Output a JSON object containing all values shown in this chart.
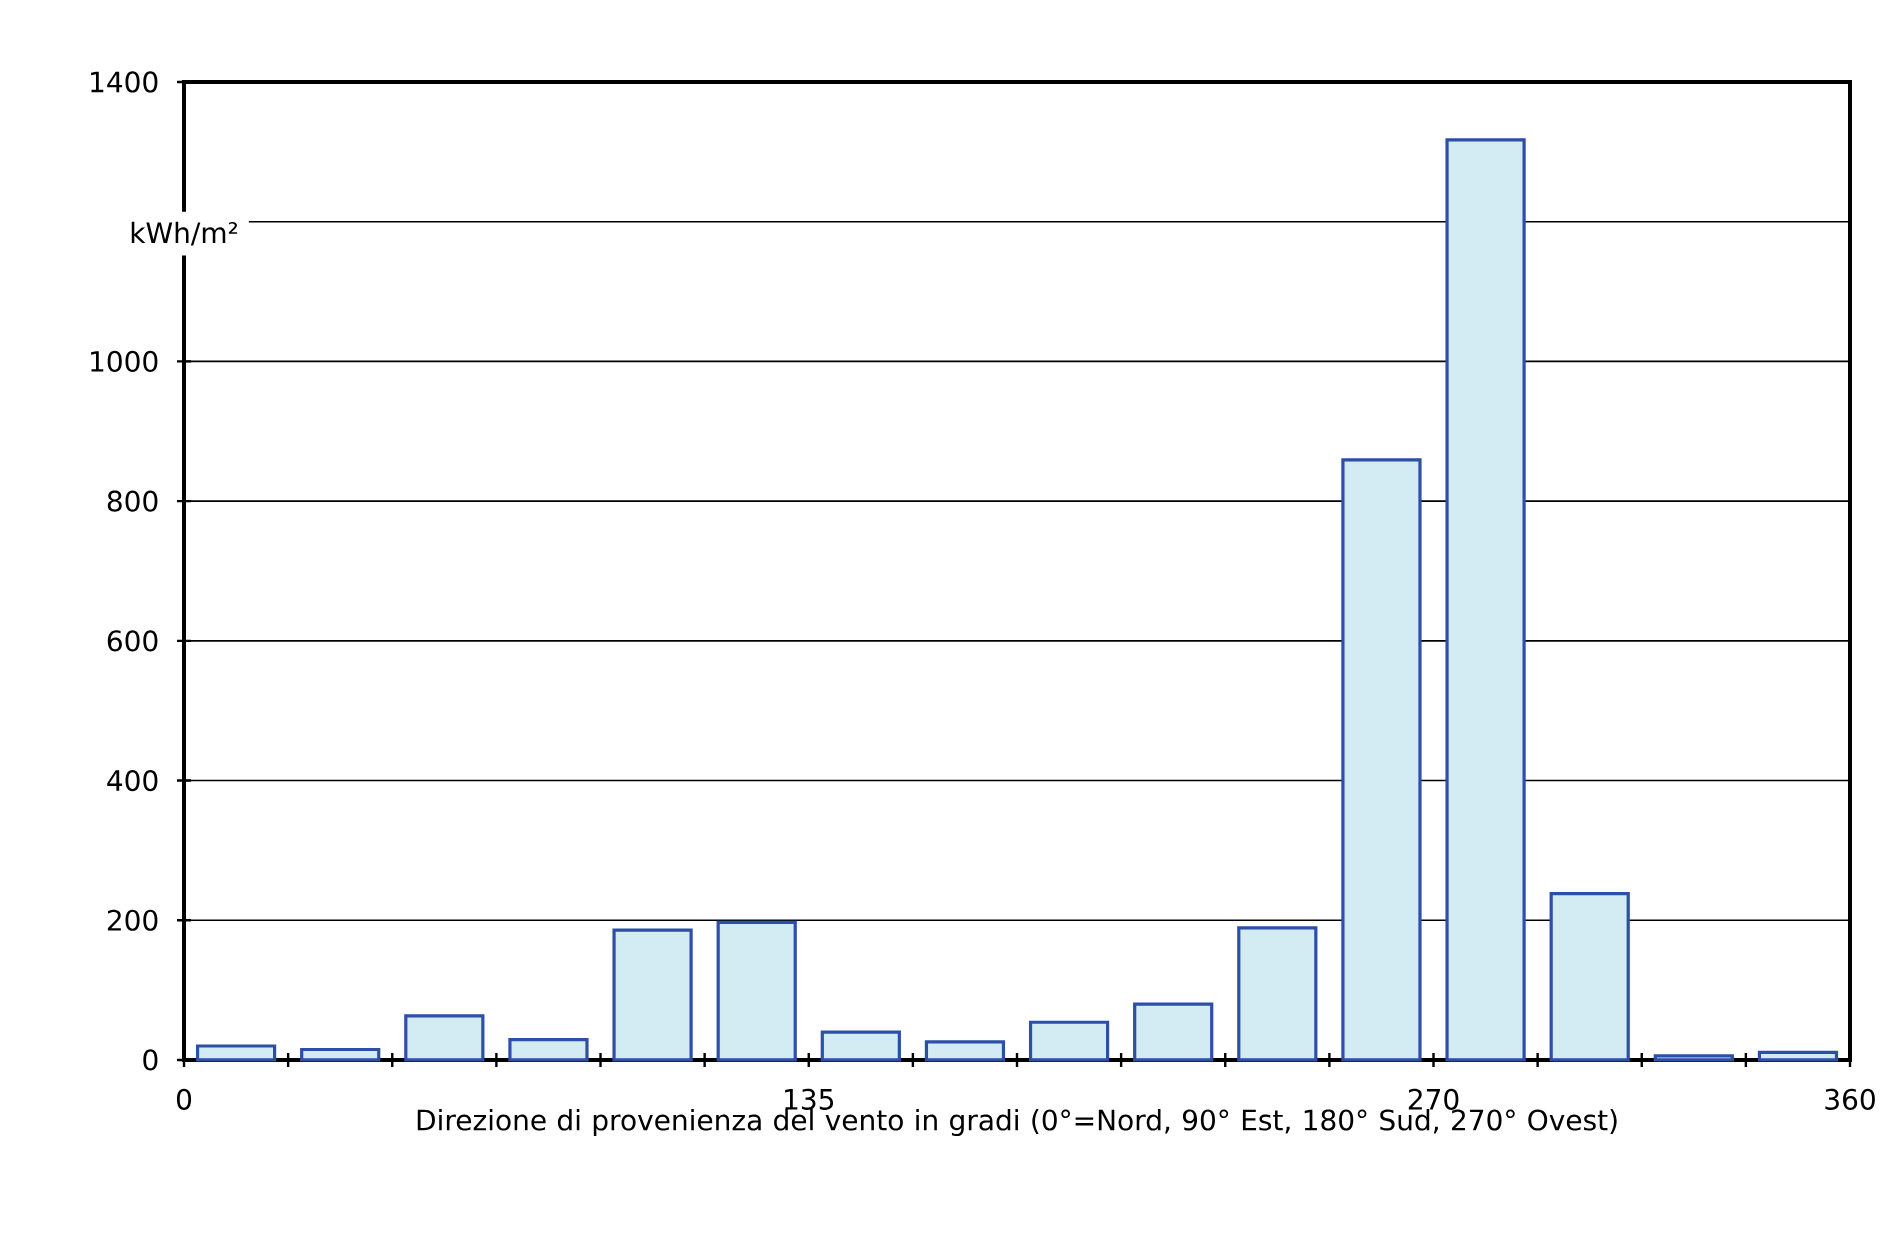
{
  "chart_data": {
    "type": "histogram",
    "xlabel": "Direzione di provenienza del vento in gradi (0°=Nord, 90° Est, 180° Sud, 270° Ovest)",
    "ylabel": "kWh/m²",
    "bins": [
      0,
      22.5,
      45,
      67.5,
      90,
      112.5,
      135,
      157.5,
      180,
      202.5,
      225,
      247.5,
      270,
      292.5,
      315,
      337.5,
      360
    ],
    "values": [
      20,
      15,
      63,
      29,
      186,
      197,
      40,
      26,
      54,
      80,
      189,
      859,
      1317,
      238,
      6,
      11
    ],
    "color": "#d3ebf2",
    "xlim": [
      0,
      360
    ],
    "xticks": [
      0,
      {
        "value": 22.5,
        "label": null
      },
      {
        "value": 45,
        "label": null
      },
      {
        "value": 67.5,
        "label": null
      },
      {
        "value": 90,
        "label": null
      },
      {
        "value": 112.5,
        "label": null
      },
      135,
      {
        "value": 157.5,
        "label": null
      },
      {
        "value": 180,
        "label": null
      },
      {
        "value": 202.5,
        "label": null
      },
      {
        "value": 225,
        "label": null
      },
      {
        "value": 247.5,
        "label": null
      },
      270,
      {
        "value": 292.5,
        "label": null
      },
      {
        "value": 315,
        "label": null
      },
      {
        "value": 337.5,
        "label": null
      },
      360
    ],
    "ylim": [
      0,
      1400
    ],
    "yticks": [
      0,
      200,
      400,
      600,
      800,
      1000,
      {
        "value": 1200,
        "label": null
      },
      1400
    ],
    "grid": "y"
  }
}
